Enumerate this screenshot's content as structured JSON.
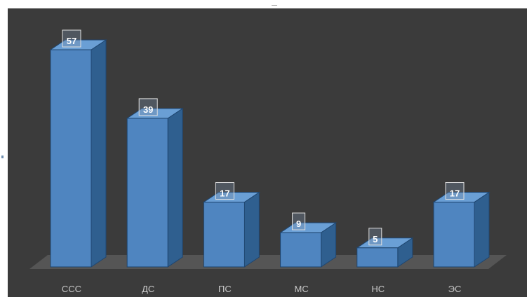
{
  "chart_data": {
    "type": "bar",
    "style": "3d-column",
    "categories": [
      "ССС",
      "ДС",
      "ПС",
      "МС",
      "НС",
      "ЭС"
    ],
    "values": [
      57,
      39,
      17,
      9,
      5,
      17
    ],
    "data_labels": [
      "57",
      "39",
      "17",
      "9",
      "5",
      "17"
    ],
    "ylim": [
      0,
      57
    ],
    "grid": false,
    "legend": "none",
    "colors": {
      "background": "#3b3b3b",
      "bar_front": "#4f85c0",
      "bar_side": "#2f5f8f",
      "bar_top": "#6a9fd5",
      "floor": "#555555",
      "label_text": "#ffffff",
      "category_text": "#c8c8c8"
    }
  }
}
